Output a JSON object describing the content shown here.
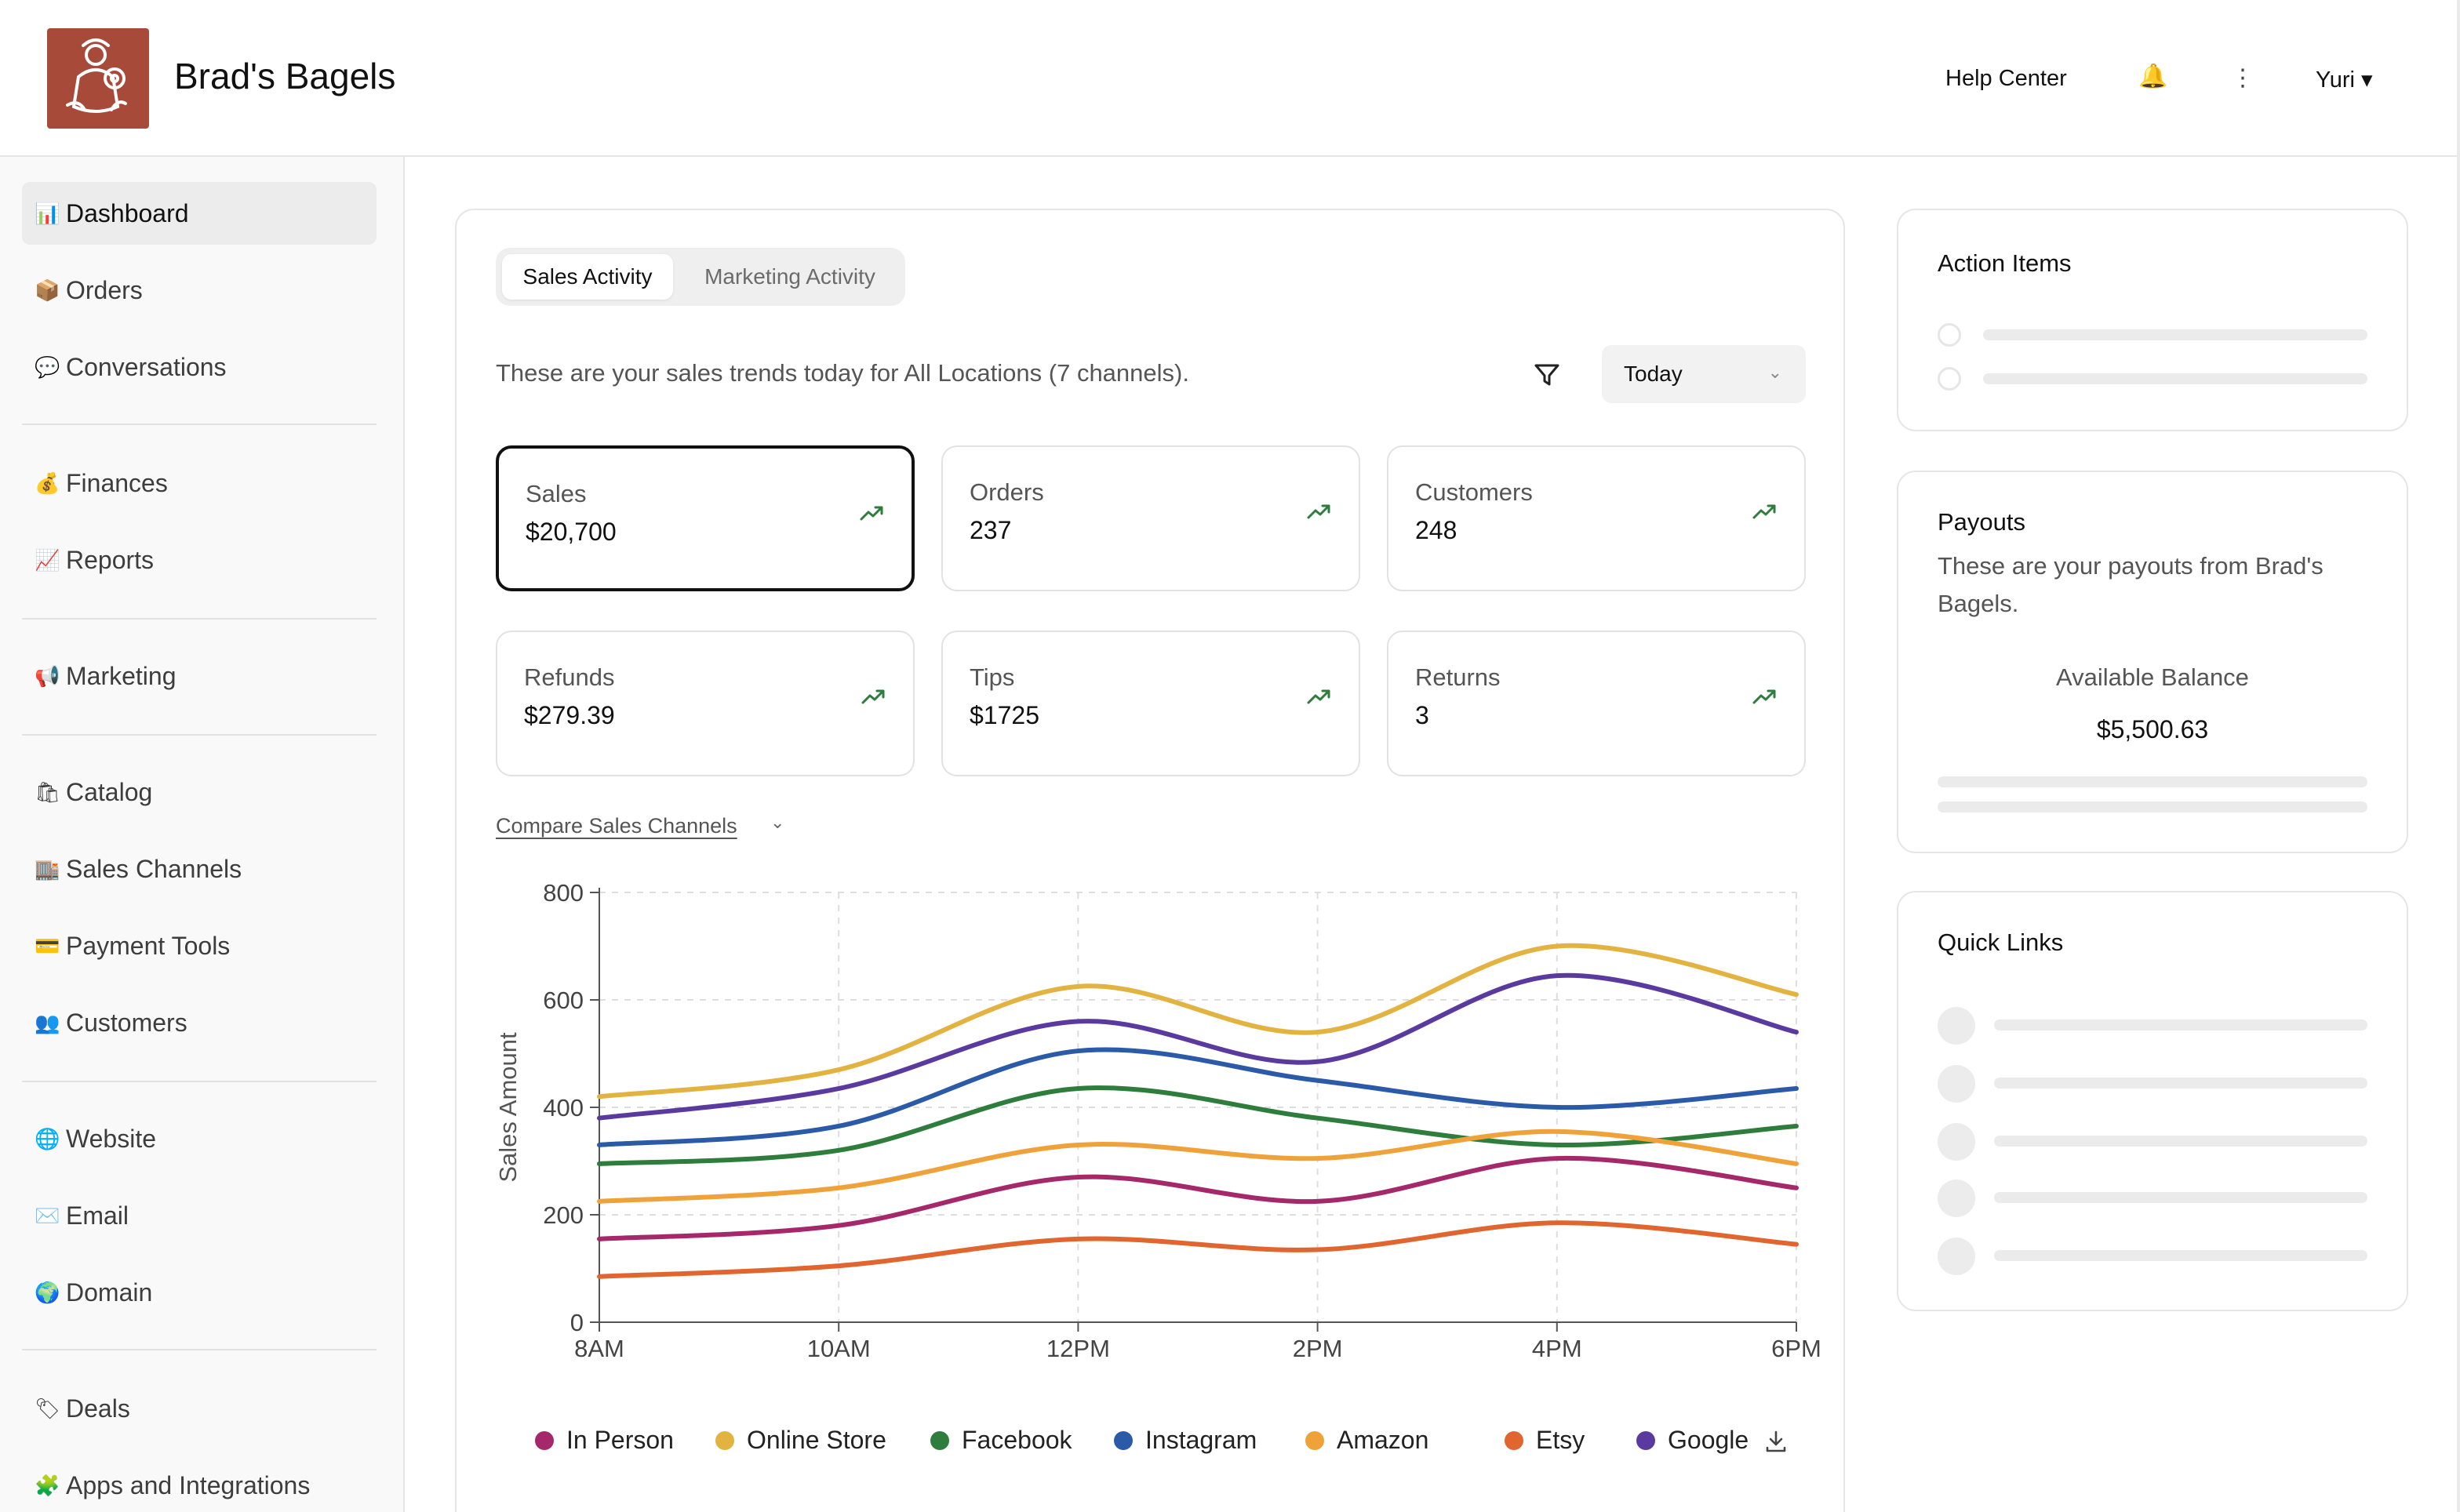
{
  "header": {
    "brand": "Brad's Bagels",
    "help_label": "Help Center",
    "bell_icon": "🔔",
    "more_icon": "⋮",
    "user_label": "Yuri ▾"
  },
  "sidebar": {
    "groups": [
      [
        {
          "icon": "📊",
          "label": "Dashboard",
          "active": true
        },
        {
          "icon": "📦",
          "label": "Orders"
        },
        {
          "icon": "💬",
          "label": "Conversations"
        }
      ],
      [
        {
          "icon": "💰",
          "label": "Finances"
        },
        {
          "icon": "📈",
          "label": "Reports"
        }
      ],
      [
        {
          "icon": "📢",
          "label": "Marketing"
        }
      ],
      [
        {
          "icon": "🛍",
          "label": "Catalog"
        },
        {
          "icon": "🏬",
          "label": "Sales Channels"
        },
        {
          "icon": "💳",
          "label": "Payment Tools"
        },
        {
          "icon": "👥",
          "label": "Customers"
        }
      ],
      [
        {
          "icon": "🌐",
          "label": "Website"
        },
        {
          "icon": "✉️",
          "label": "Email"
        },
        {
          "icon": "🌍",
          "label": "Domain"
        }
      ],
      [
        {
          "icon": "🏷",
          "label": "Deals"
        },
        {
          "icon": "🧩",
          "label": "Apps and Integrations"
        }
      ]
    ]
  },
  "main": {
    "tabs": [
      {
        "label": "Sales Activity",
        "active": true
      },
      {
        "label": "Marketing Activity",
        "active": false
      }
    ],
    "description": "These are your sales trends today for All Locations (7 channels).",
    "date_filter": "Today",
    "metrics": [
      {
        "label": "Sales",
        "value": "$20,700",
        "selected": true
      },
      {
        "label": "Orders",
        "value": "237"
      },
      {
        "label": "Customers",
        "value": "248"
      },
      {
        "label": "Refunds",
        "value": "$279.39"
      },
      {
        "label": "Tips",
        "value": "$1725"
      },
      {
        "label": "Returns",
        "value": "3"
      }
    ],
    "compare_label": "Compare Sales Channels"
  },
  "chart_data": {
    "type": "line",
    "title": "",
    "xlabel": "",
    "ylabel": "Sales Amount",
    "x": [
      "8AM",
      "10AM",
      "12PM",
      "2PM",
      "4PM",
      "6PM"
    ],
    "ylim": [
      0,
      800
    ],
    "yticks": [
      0,
      200,
      400,
      600,
      800
    ],
    "grid": true,
    "legend_position": "bottom",
    "series": [
      {
        "name": "In Person",
        "color": "#a4286a",
        "values": [
          155,
          180,
          270,
          225,
          305,
          250
        ]
      },
      {
        "name": "Online Store",
        "color": "#e3b341",
        "values": [
          420,
          470,
          625,
          540,
          700,
          610
        ]
      },
      {
        "name": "Facebook",
        "color": "#2e7d3c",
        "values": [
          295,
          320,
          435,
          380,
          330,
          365
        ]
      },
      {
        "name": "Instagram",
        "color": "#2b5aa8",
        "values": [
          330,
          365,
          505,
          450,
          400,
          435
        ]
      },
      {
        "name": "Amazon",
        "color": "#f0a23a",
        "values": [
          225,
          250,
          330,
          305,
          355,
          295
        ]
      },
      {
        "name": "Etsy",
        "color": "#e0652f",
        "values": [
          85,
          105,
          155,
          135,
          185,
          145
        ]
      },
      {
        "name": "Google",
        "color": "#5b3aa0",
        "values": [
          380,
          435,
          560,
          485,
          645,
          540
        ]
      }
    ]
  },
  "action_items": {
    "title": "Action Items"
  },
  "payouts": {
    "title": "Payouts",
    "description": "These are your payouts from Brad's Bagels.",
    "balance_label": "Available Balance",
    "balance_value": "$5,500.63"
  },
  "quick_links": {
    "title": "Quick Links"
  }
}
